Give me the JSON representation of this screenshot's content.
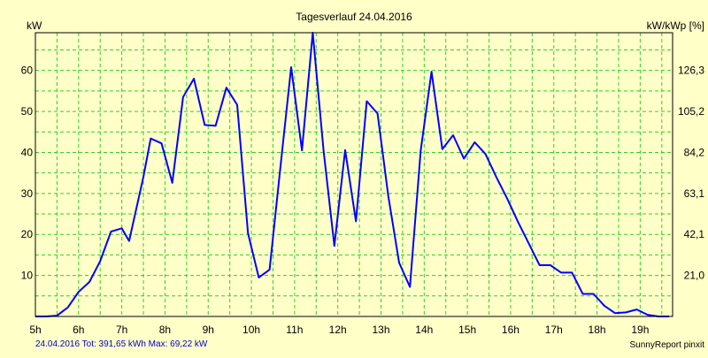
{
  "chart_data": {
    "type": "line",
    "title": "Tagesverlauf 24.04.2016",
    "ylabel_left": "kW",
    "ylabel_right": "kW/kWp [%]",
    "footer_left": "24.04.2016 Tot: 391,65 kWh Max: 69,22 kW",
    "footer_right": "SunnyReport pinxit",
    "x_ticks": [
      "5h",
      "6h",
      "7h",
      "8h",
      "9h",
      "10h",
      "11h",
      "12h",
      "13h",
      "14h",
      "15h",
      "16h",
      "17h",
      "18h",
      "19h"
    ],
    "y_ticks_left": [
      "10",
      "20",
      "30",
      "40",
      "50",
      "60"
    ],
    "y_ticks_right": [
      "21,0",
      "42,1",
      "63,1",
      "84,2",
      "105,2",
      "126,3"
    ],
    "xlim": [
      5,
      19.75
    ],
    "ylim": [
      0,
      69.2
    ],
    "grid": true,
    "colors": {
      "background": "#ffffc8",
      "grid": "#33cc33",
      "line": "#0000ff",
      "axis_text": "#000000",
      "footer_text": "#0000cc"
    },
    "series": [
      {
        "x": [
          5,
          5.25,
          5.5,
          5.75,
          6,
          6.25,
          6.5,
          6.75,
          7,
          7.17,
          7.5,
          7.67,
          7.92,
          8.17,
          8.42,
          8.67,
          8.92,
          9.17,
          9.42,
          9.67,
          9.92,
          10.17,
          10.42,
          10.67,
          10.92,
          11.17,
          11.42,
          11.67,
          11.92,
          12.17,
          12.42,
          12.67,
          12.92,
          13.17,
          13.42,
          13.67,
          13.92,
          14.17,
          14.42,
          14.67,
          14.92,
          15.17,
          15.42,
          15.67,
          15.92,
          16.17,
          16.42,
          16.67,
          16.92,
          17.17,
          17.42,
          17.67,
          17.92,
          18.17,
          18.42,
          18.67,
          18.92,
          19.17,
          19.42,
          19.67
        ],
        "values": [
          0,
          0,
          0.2,
          2.2,
          6,
          8.4,
          13.5,
          20.7,
          21.5,
          18.4,
          34,
          43.4,
          42.2,
          32.6,
          53.5,
          58,
          46.7,
          46.5,
          55.8,
          51.6,
          20.3,
          9.5,
          11.4,
          36.3,
          60.8,
          40.5,
          69.2,
          40.5,
          17.2,
          40.6,
          23.2,
          52.5,
          49.5,
          29.3,
          13.1,
          7.2,
          40.5,
          59.7,
          40.8,
          44.2,
          38.5,
          42.5,
          39.6,
          34,
          28.8,
          23.1,
          17.8,
          12.5,
          12.5,
          10.7,
          10.7,
          5.5,
          5.5,
          2.6,
          0.8,
          1,
          1.7,
          0.4,
          0,
          0
        ]
      }
    ]
  }
}
